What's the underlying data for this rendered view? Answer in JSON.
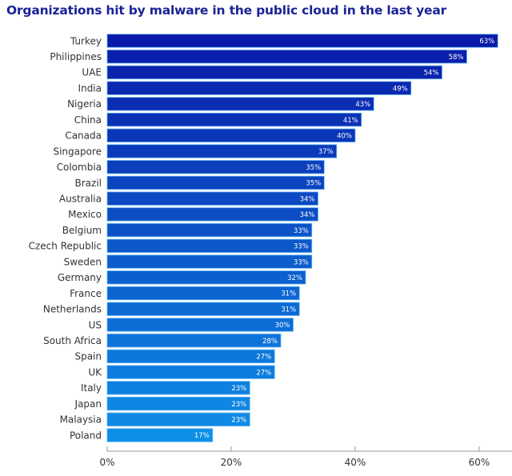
{
  "chart_data": {
    "type": "bar",
    "orientation": "horizontal",
    "title": "Organizations hit by malware in the public cloud in the last year",
    "xlabel": "",
    "ylabel": "",
    "categories": [
      "Turkey",
      "Philippines",
      "UAE",
      "India",
      "Nigeria",
      "China",
      "Canada",
      "Singapore",
      "Colombia",
      "Brazil",
      "Australia",
      "Mexico",
      "Belgium",
      "Czech Republic",
      "Sweden",
      "Germany",
      "France",
      "Netherlands",
      "US",
      "South Africa",
      "Spain",
      "UK",
      "Italy",
      "Japan",
      "Malaysia",
      "Poland"
    ],
    "values": [
      63,
      58,
      54,
      49,
      43,
      41,
      40,
      37,
      35,
      35,
      34,
      34,
      33,
      33,
      33,
      32,
      31,
      31,
      30,
      28,
      27,
      27,
      23,
      23,
      23,
      17
    ],
    "value_labels": [
      "63%",
      "58%",
      "54%",
      "49%",
      "43%",
      "41%",
      "40%",
      "37%",
      "35%",
      "35%",
      "34%",
      "34%",
      "33%",
      "33%",
      "33%",
      "32%",
      "31%",
      "31%",
      "30%",
      "28%",
      "27%",
      "27%",
      "23%",
      "23%",
      "23%",
      "17%"
    ],
    "xlim": [
      0,
      63
    ],
    "xticks": [
      0,
      20,
      40,
      60
    ],
    "xtick_labels": [
      "0%",
      "20%",
      "40%",
      "60%"
    ],
    "grid": false,
    "legend": "none",
    "colors": {
      "top": "#0a1aa8",
      "bottom": "#0e8fe8",
      "title": "#1a2496"
    }
  }
}
